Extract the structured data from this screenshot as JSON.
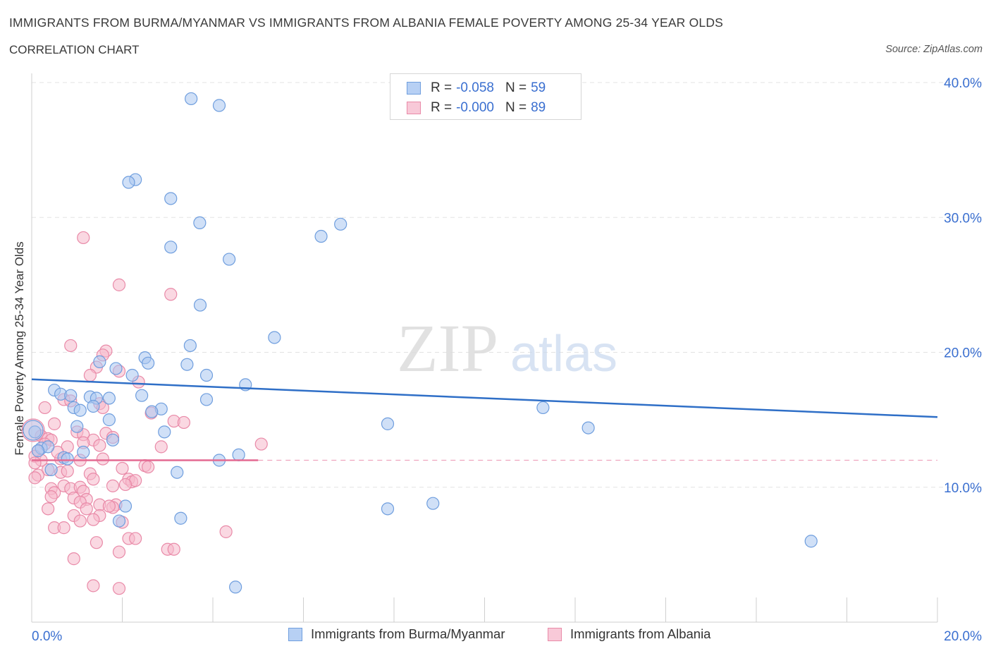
{
  "header": {
    "title": "IMMIGRANTS FROM BURMA/MYANMAR VS IMMIGRANTS FROM ALBANIA FEMALE POVERTY AMONG 25-34 YEAR OLDS",
    "subtitle": "CORRELATION CHART",
    "source": "Source: ZipAtlas.com"
  },
  "watermark": {
    "zip": "ZIP",
    "atlas": "atlas"
  },
  "legend": {
    "rows": [
      {
        "r_label": "R =",
        "r_value": "-0.058",
        "n_label": "N =",
        "n_value": "59"
      },
      {
        "r_label": "R =",
        "r_value": "-0.000",
        "n_label": "N =",
        "n_value": "89"
      }
    ]
  },
  "colors": {
    "burma_fill": "#a9c6f0",
    "burma_stroke": "#6f9ede",
    "burma_line": "#2f6fc7",
    "albania_fill": "#f5b8cb",
    "albania_stroke": "#e98aa8",
    "albania_line": "#e46a92",
    "axis_text": "#3a6fd0",
    "grid": "#e3e3e3"
  },
  "chart_data": {
    "type": "scatter",
    "title": "IMMIGRANTS FROM BURMA/MYANMAR VS IMMIGRANTS FROM ALBANIA FEMALE POVERTY AMONG 25-34 YEAR OLDS",
    "xlabel": "",
    "ylabel": "Female Poverty Among 25-34 Year Olds",
    "xlim": [
      0,
      20
    ],
    "ylim": [
      0,
      40
    ],
    "x_tick_labels": [
      "0.0%",
      "20.0%"
    ],
    "y_tick_values": [
      10,
      20,
      30,
      40
    ],
    "y_tick_labels": [
      "10.0%",
      "20.0%",
      "30.0%",
      "40.0%"
    ],
    "legend_placement": "top-center",
    "series": [
      {
        "name": "Immigrants from Burma/Myanmar",
        "trend": {
          "x": [
            0,
            20
          ],
          "y": [
            18.0,
            15.2
          ]
        },
        "points": [
          [
            3.52,
            38.8
          ],
          [
            4.14,
            38.3
          ],
          [
            2.29,
            32.8
          ],
          [
            2.14,
            32.6
          ],
          [
            3.07,
            31.4
          ],
          [
            3.71,
            29.6
          ],
          [
            6.82,
            29.5
          ],
          [
            6.39,
            28.6
          ],
          [
            3.07,
            27.8
          ],
          [
            4.36,
            26.9
          ],
          [
            3.72,
            23.5
          ],
          [
            5.36,
            21.1
          ],
          [
            3.5,
            20.5
          ],
          [
            2.5,
            19.6
          ],
          [
            2.57,
            19.2
          ],
          [
            3.43,
            19.1
          ],
          [
            1.5,
            19.3
          ],
          [
            1.86,
            18.8
          ],
          [
            2.22,
            18.3
          ],
          [
            3.86,
            18.3
          ],
          [
            4.72,
            17.6
          ],
          [
            0.5,
            17.2
          ],
          [
            0.64,
            16.9
          ],
          [
            0.86,
            16.8
          ],
          [
            1.29,
            16.7
          ],
          [
            1.43,
            16.6
          ],
          [
            1.71,
            16.6
          ],
          [
            2.43,
            16.8
          ],
          [
            3.86,
            16.5
          ],
          [
            0.93,
            15.9
          ],
          [
            1.07,
            15.7
          ],
          [
            1.36,
            16.0
          ],
          [
            2.86,
            15.8
          ],
          [
            2.65,
            15.6
          ],
          [
            1.71,
            15.0
          ],
          [
            11.29,
            15.9
          ],
          [
            7.86,
            14.7
          ],
          [
            12.29,
            14.4
          ],
          [
            1.0,
            14.5
          ],
          [
            0.07,
            14.1
          ],
          [
            2.93,
            14.1
          ],
          [
            1.79,
            13.5
          ],
          [
            0.21,
            12.9
          ],
          [
            0.36,
            13.0
          ],
          [
            0.14,
            12.7
          ],
          [
            1.14,
            12.6
          ],
          [
            0.71,
            12.2
          ],
          [
            0.79,
            12.1
          ],
          [
            4.57,
            12.4
          ],
          [
            4.14,
            12.0
          ],
          [
            0.43,
            11.3
          ],
          [
            3.21,
            11.1
          ],
          [
            2.07,
            8.6
          ],
          [
            7.86,
            8.4
          ],
          [
            8.86,
            8.8
          ],
          [
            1.93,
            7.5
          ],
          [
            3.29,
            7.7
          ],
          [
            17.21,
            6.0
          ],
          [
            4.5,
            2.6
          ]
        ]
      },
      {
        "name": "Immigrants from Albania",
        "trend": {
          "x": [
            0,
            5.0
          ],
          "y": [
            12.0,
            12.0
          ]
        },
        "trend_dashed_extension": {
          "x": [
            5.0,
            20
          ],
          "y": [
            12.0,
            12.0
          ]
        },
        "points": [
          [
            1.14,
            28.5
          ],
          [
            1.93,
            25.0
          ],
          [
            3.07,
            24.3
          ],
          [
            0.86,
            20.5
          ],
          [
            1.64,
            20.1
          ],
          [
            1.57,
            19.8
          ],
          [
            1.43,
            18.9
          ],
          [
            1.93,
            18.6
          ],
          [
            1.29,
            18.3
          ],
          [
            2.36,
            17.8
          ],
          [
            0.71,
            16.5
          ],
          [
            0.86,
            16.4
          ],
          [
            1.5,
            16.2
          ],
          [
            0.29,
            15.9
          ],
          [
            1.57,
            15.9
          ],
          [
            2.64,
            15.5
          ],
          [
            3.14,
            14.9
          ],
          [
            3.36,
            14.8
          ],
          [
            0.5,
            14.7
          ],
          [
            1.0,
            14.1
          ],
          [
            1.14,
            13.9
          ],
          [
            1.64,
            14.0
          ],
          [
            0.21,
            13.8
          ],
          [
            0.36,
            13.6
          ],
          [
            0.43,
            13.5
          ],
          [
            1.36,
            13.5
          ],
          [
            1.79,
            13.7
          ],
          [
            1.14,
            13.3
          ],
          [
            0.29,
            13.2
          ],
          [
            0.79,
            13.0
          ],
          [
            2.86,
            13.0
          ],
          [
            1.5,
            13.1
          ],
          [
            0.14,
            12.7
          ],
          [
            0.07,
            12.3
          ],
          [
            0.64,
            12.1
          ],
          [
            1.07,
            12.0
          ],
          [
            1.57,
            12.1
          ],
          [
            5.07,
            13.2
          ],
          [
            2.5,
            11.6
          ],
          [
            0.36,
            11.3
          ],
          [
            0.64,
            11.1
          ],
          [
            0.79,
            11.2
          ],
          [
            1.29,
            11.0
          ],
          [
            2.0,
            11.4
          ],
          [
            0.14,
            10.9
          ],
          [
            0.07,
            10.7
          ],
          [
            1.36,
            10.6
          ],
          [
            2.14,
            10.6
          ],
          [
            2.21,
            10.4
          ],
          [
            2.29,
            10.5
          ],
          [
            0.71,
            10.1
          ],
          [
            0.43,
            9.9
          ],
          [
            0.5,
            9.6
          ],
          [
            0.86,
            9.9
          ],
          [
            1.07,
            10.0
          ],
          [
            1.14,
            9.7
          ],
          [
            1.79,
            10.1
          ],
          [
            2.07,
            10.2
          ],
          [
            0.43,
            9.3
          ],
          [
            0.93,
            9.2
          ],
          [
            1.21,
            9.1
          ],
          [
            1.07,
            8.9
          ],
          [
            1.5,
            8.7
          ],
          [
            1.86,
            8.7
          ],
          [
            0.36,
            8.4
          ],
          [
            1.21,
            8.4
          ],
          [
            1.79,
            8.5
          ],
          [
            0.93,
            7.9
          ],
          [
            1.5,
            7.9
          ],
          [
            1.36,
            7.6
          ],
          [
            0.5,
            7.0
          ],
          [
            0.71,
            7.0
          ],
          [
            1.07,
            7.5
          ],
          [
            2.0,
            7.4
          ],
          [
            2.14,
            6.2
          ],
          [
            2.29,
            6.2
          ],
          [
            4.29,
            6.7
          ],
          [
            1.43,
            5.9
          ],
          [
            3.0,
            5.4
          ],
          [
            3.14,
            5.4
          ],
          [
            1.93,
            5.2
          ],
          [
            0.93,
            4.7
          ],
          [
            1.36,
            2.7
          ],
          [
            1.93,
            2.5
          ],
          [
            2.57,
            11.5
          ],
          [
            0.57,
            12.6
          ],
          [
            1.71,
            8.6
          ],
          [
            0.21,
            12.0
          ],
          [
            0.07,
            11.8
          ]
        ]
      }
    ]
  },
  "bottom_legend": {
    "items": [
      {
        "label": "Immigrants from Burma/Myanmar"
      },
      {
        "label": "Immigrants from Albania"
      }
    ]
  }
}
